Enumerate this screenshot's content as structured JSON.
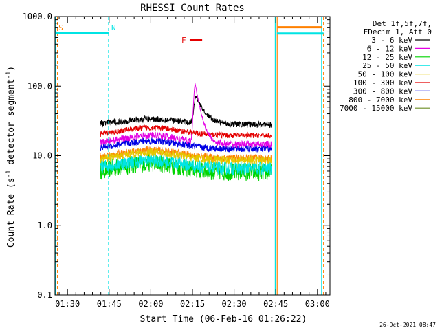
{
  "chart_data": {
    "type": "line",
    "title": "RHESSI Count Rates",
    "xlabel": "Start Time (06-Feb-16 01:26:22)",
    "ylabel_parts": [
      "Count Rate (s",
      "-1",
      " detector segment",
      "-1",
      ")"
    ],
    "yscale": "log",
    "ylim": [
      0.1,
      1000
    ],
    "xlim_minutes": [
      85.5,
      184.5
    ],
    "y_ticks": [
      {
        "v": 1000,
        "label": "1000.0"
      },
      {
        "v": 100,
        "label": "100.0"
      },
      {
        "v": 10,
        "label": "10.0"
      },
      {
        "v": 1,
        "label": "1.0"
      },
      {
        "v": 0.1,
        "label": "0.1"
      }
    ],
    "x_ticks": [
      {
        "m": 90,
        "label": "01:30"
      },
      {
        "m": 105,
        "label": "01:45"
      },
      {
        "m": 120,
        "label": "02:00"
      },
      {
        "m": 135,
        "label": "02:15"
      },
      {
        "m": 150,
        "label": "02:30"
      },
      {
        "m": 165,
        "label": "02:45"
      },
      {
        "m": 180,
        "label": "03:00"
      }
    ],
    "legend_header": [
      "Det 1f,5f,7f,",
      "FDecim 1, Att 0"
    ],
    "series": [
      {
        "name": "3 - 6 keV",
        "color": "#000000",
        "base": 28,
        "bump": 1.2,
        "amp": 0.045,
        "flare": {
          "peak": 70,
          "center": 136.3,
          "rise": 0.9,
          "decay": 2.8
        }
      },
      {
        "name": "6 - 12 keV",
        "color": "#e400e4",
        "base": 14.5,
        "bump": 1.35,
        "amp": 0.05,
        "flare": {
          "peak": 105,
          "center": 136.0,
          "rise": 0.7,
          "decay": 1.7
        }
      },
      {
        "name": "12 - 25 keV",
        "color": "#00d400",
        "base": 5.8,
        "bump": 1.35,
        "amp": 0.13
      },
      {
        "name": "25 - 50 keV",
        "color": "#00e4e4",
        "base": 6.6,
        "bump": 1.3,
        "amp": 0.1
      },
      {
        "name": "50 - 100 keV",
        "color": "#e4c800",
        "base": 8.6,
        "bump": 1.3,
        "amp": 0.06
      },
      {
        "name": "100 - 300 keV",
        "color": "#e40000",
        "base": 19.5,
        "bump": 1.3,
        "amp": 0.04
      },
      {
        "name": "300 - 800 keV",
        "color": "#0000e4",
        "base": 12.5,
        "bump": 1.3,
        "amp": 0.05
      },
      {
        "name": "800 - 7000 keV",
        "color": "#ff8000",
        "base": 9.2,
        "bump": 1.3,
        "amp": 0.055
      },
      {
        "name": "7000 - 15000 keV",
        "color": "#6b8e23",
        "base": 0,
        "bump": 1,
        "amp": 0
      }
    ],
    "data_start_min": 101.7,
    "data_end_min": 163.5,
    "markers": [
      {
        "label": "S",
        "color": "#ff8000",
        "minute": 85.8,
        "level": 700
      },
      {
        "label": "N",
        "color": "#00e4e4",
        "minute": 104.8,
        "level": 580
      },
      {
        "label": "F",
        "color": "#e40000",
        "start": 134.0,
        "end": 138.5,
        "level": 460
      }
    ],
    "right_bars": [
      {
        "color": "#ff8000",
        "start": 165.6,
        "end": 181.6,
        "level": 700
      },
      {
        "color": "#00e4e4",
        "start": 165.4,
        "end": 182.2,
        "level": 570
      }
    ],
    "vlines": [
      {
        "minute": 85.6,
        "color": "#00e4e4",
        "style": "solid"
      },
      {
        "minute": 86.4,
        "color": "#ff8000",
        "style": "dashed"
      },
      {
        "minute": 104.8,
        "color": "#00e4e4",
        "style": "dashed"
      },
      {
        "minute": 164.8,
        "color": "#00e4e4",
        "style": "solid"
      },
      {
        "minute": 165.5,
        "color": "#ff8000",
        "style": "solid"
      },
      {
        "minute": 181.5,
        "color": "#00e4e4",
        "style": "solid"
      },
      {
        "minute": 182.2,
        "color": "#ff8000",
        "style": "dashed"
      }
    ],
    "timestamp": "26-Oct-2021 08:47"
  }
}
